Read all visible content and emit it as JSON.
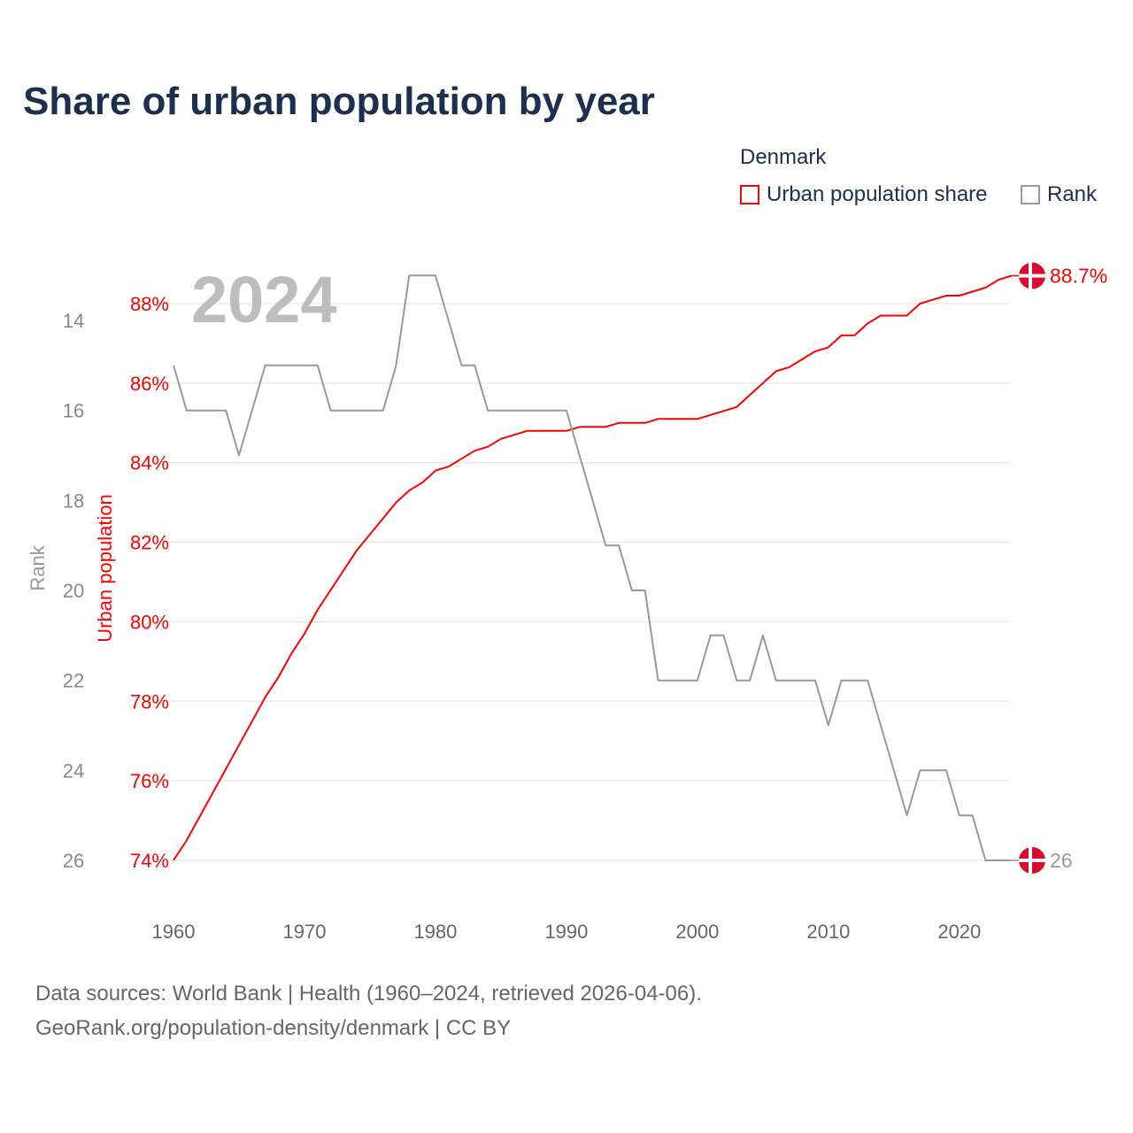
{
  "chart_data": {
    "type": "line",
    "title": "Share of urban population by year",
    "legend": {
      "title": "Denmark",
      "placement": "top-right",
      "entries": [
        "Urban population share",
        "Rank"
      ]
    },
    "watermark_year": "2024",
    "xlabel": "",
    "y_left_outer_label": "Rank",
    "y_left_inner_label": "Urban population",
    "x_ticks": [
      "1960",
      "1970",
      "1980",
      "1990",
      "2000",
      "2010",
      "2020"
    ],
    "x_range": [
      1960,
      2024
    ],
    "pct_ticks": [
      "74%",
      "76%",
      "78%",
      "80%",
      "82%",
      "84%",
      "86%",
      "88%"
    ],
    "pct_range": [
      74,
      88
    ],
    "rank_ticks": [
      "14",
      "16",
      "18",
      "20",
      "22",
      "24",
      "26"
    ],
    "rank_range": [
      14,
      26
    ],
    "colors": {
      "urban": "#ff0000",
      "rank": "#999999",
      "flag": "#d80c2f"
    },
    "x": [
      1960,
      1961,
      1962,
      1963,
      1964,
      1965,
      1966,
      1967,
      1968,
      1969,
      1970,
      1971,
      1972,
      1973,
      1974,
      1975,
      1976,
      1977,
      1978,
      1979,
      1980,
      1981,
      1982,
      1983,
      1984,
      1985,
      1986,
      1987,
      1988,
      1989,
      1990,
      1991,
      1992,
      1993,
      1994,
      1995,
      1996,
      1997,
      1998,
      1999,
      2000,
      2001,
      2002,
      2003,
      2004,
      2005,
      2006,
      2007,
      2008,
      2009,
      2010,
      2011,
      2012,
      2013,
      2014,
      2015,
      2016,
      2017,
      2018,
      2019,
      2020,
      2021,
      2022,
      2023,
      2024
    ],
    "series": [
      {
        "name": "Urban population share",
        "axis": "pct",
        "values": [
          74.0,
          74.5,
          75.1,
          75.7,
          76.3,
          76.9,
          77.5,
          78.1,
          78.6,
          79.2,
          79.7,
          80.3,
          80.8,
          81.3,
          81.8,
          82.2,
          82.6,
          83.0,
          83.3,
          83.5,
          83.8,
          83.9,
          84.1,
          84.3,
          84.4,
          84.6,
          84.7,
          84.8,
          84.8,
          84.8,
          84.8,
          84.9,
          84.9,
          84.9,
          85.0,
          85.0,
          85.0,
          85.1,
          85.1,
          85.1,
          85.1,
          85.2,
          85.3,
          85.4,
          85.7,
          86.0,
          86.3,
          86.4,
          86.6,
          86.8,
          86.9,
          87.2,
          87.2,
          87.5,
          87.7,
          87.7,
          87.7,
          88.0,
          88.1,
          88.2,
          88.2,
          88.3,
          88.4,
          88.6,
          88.7
        ],
        "end_label": "88.7%"
      },
      {
        "name": "Rank",
        "axis": "rank",
        "values": [
          15,
          16,
          16,
          16,
          16,
          17,
          16,
          15,
          15,
          15,
          15,
          15,
          16,
          16,
          16,
          16,
          16,
          15,
          13,
          13,
          13,
          14,
          15,
          15,
          16,
          16,
          16,
          16,
          16,
          16,
          16,
          17,
          18,
          19,
          19,
          20,
          20,
          22,
          22,
          22,
          22,
          21,
          21,
          22,
          22,
          21,
          22,
          22,
          22,
          22,
          23,
          22,
          22,
          22,
          23,
          24,
          25,
          24,
          24,
          24,
          25,
          25,
          26,
          26,
          26
        ],
        "end_label": "26"
      }
    ]
  },
  "footer": {
    "line1": "Data sources: World Bank | Health (1960–2024, retrieved 2026-04-06).",
    "line2": "GeoRank.org/population-density/denmark | CC BY"
  }
}
